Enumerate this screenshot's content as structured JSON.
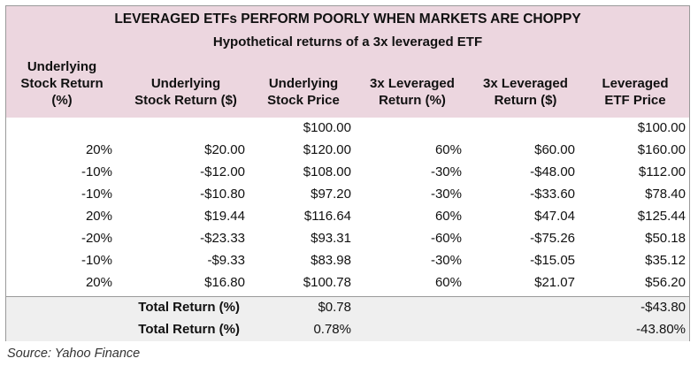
{
  "title": "LEVERAGED ETFs PERFORM POORLY WHEN MARKETS ARE CHOPPY",
  "subtitle": "Hypothetical returns of a 3x leveraged ETF",
  "columns": [
    [
      "Underlying",
      "Stock Return",
      "(%)"
    ],
    [
      "Underlying",
      "Stock Return ($)"
    ],
    [
      "Underlying",
      "Stock Price"
    ],
    [
      "3x Leveraged",
      "Return (%)"
    ],
    [
      "3x Leveraged",
      "Return ($)"
    ],
    [
      "Leveraged",
      "ETF Price"
    ]
  ],
  "rows": [
    [
      "",
      "",
      "$100.00",
      "",
      "",
      "$100.00"
    ],
    [
      "20%",
      "$20.00",
      "$120.00",
      "60%",
      "$60.00",
      "$160.00"
    ],
    [
      "-10%",
      "-$12.00",
      "$108.00",
      "-30%",
      "-$48.00",
      "$112.00"
    ],
    [
      "-10%",
      "-$10.80",
      "$97.20",
      "-30%",
      "-$33.60",
      "$78.40"
    ],
    [
      "20%",
      "$19.44",
      "$116.64",
      "60%",
      "$47.04",
      "$125.44"
    ],
    [
      "-20%",
      "-$23.33",
      "$93.31",
      "-60%",
      "-$75.26",
      "$50.18"
    ],
    [
      "-10%",
      "-$9.33",
      "$83.98",
      "-30%",
      "-$15.05",
      "$35.12"
    ],
    [
      "20%",
      "$16.80",
      "$100.78",
      "60%",
      "$21.07",
      "$56.20"
    ]
  ],
  "totals": [
    {
      "label": "Total Return (%)",
      "stock": "$0.78",
      "etf": "-$43.80"
    },
    {
      "label": "Total Return (%)",
      "stock": "0.78%",
      "etf": "-43.80%"
    }
  ],
  "source": "Source: Yahoo Finance"
}
